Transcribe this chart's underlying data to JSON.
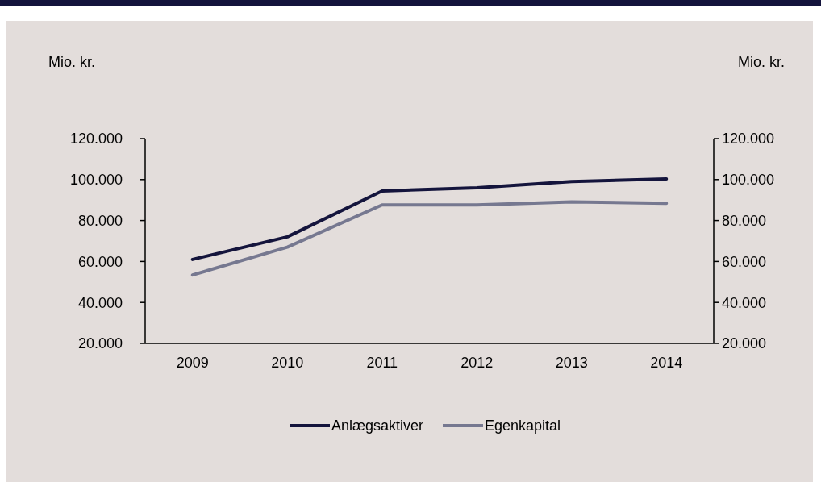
{
  "chart_data": {
    "type": "line",
    "ylabel": "Mio. kr.",
    "y2label": "Mio. kr.",
    "categories": [
      "2009",
      "2010",
      "2011",
      "2012",
      "2013",
      "2014"
    ],
    "series": [
      {
        "name": "Anlægsaktiver",
        "color": "#14143c",
        "values": [
          61000,
          72000,
          94400,
          96000,
          99000,
          100300
        ]
      },
      {
        "name": "Egenkapital",
        "color": "#767890",
        "values": [
          53400,
          67000,
          87600,
          87600,
          89100,
          88400
        ]
      }
    ],
    "ylim": [
      20000,
      120000
    ],
    "yticks": [
      {
        "value": 20000,
        "label": "20.000"
      },
      {
        "value": 40000,
        "label": "40.000"
      },
      {
        "value": 60000,
        "label": "60.000"
      },
      {
        "value": 80000,
        "label": "80.000"
      },
      {
        "value": 100000,
        "label": "100.000"
      },
      {
        "value": 120000,
        "label": "120.000"
      }
    ],
    "y2lim": [
      20000,
      120000
    ],
    "y2ticks": [
      {
        "value": 20000,
        "label": "20.000"
      },
      {
        "value": 40000,
        "label": "40.000"
      },
      {
        "value": 60000,
        "label": "60.000"
      },
      {
        "value": 80000,
        "label": "80.000"
      },
      {
        "value": 100000,
        "label": "100.000"
      },
      {
        "value": 120000,
        "label": "120.000"
      }
    ],
    "legend": "bottom",
    "grid": false
  }
}
